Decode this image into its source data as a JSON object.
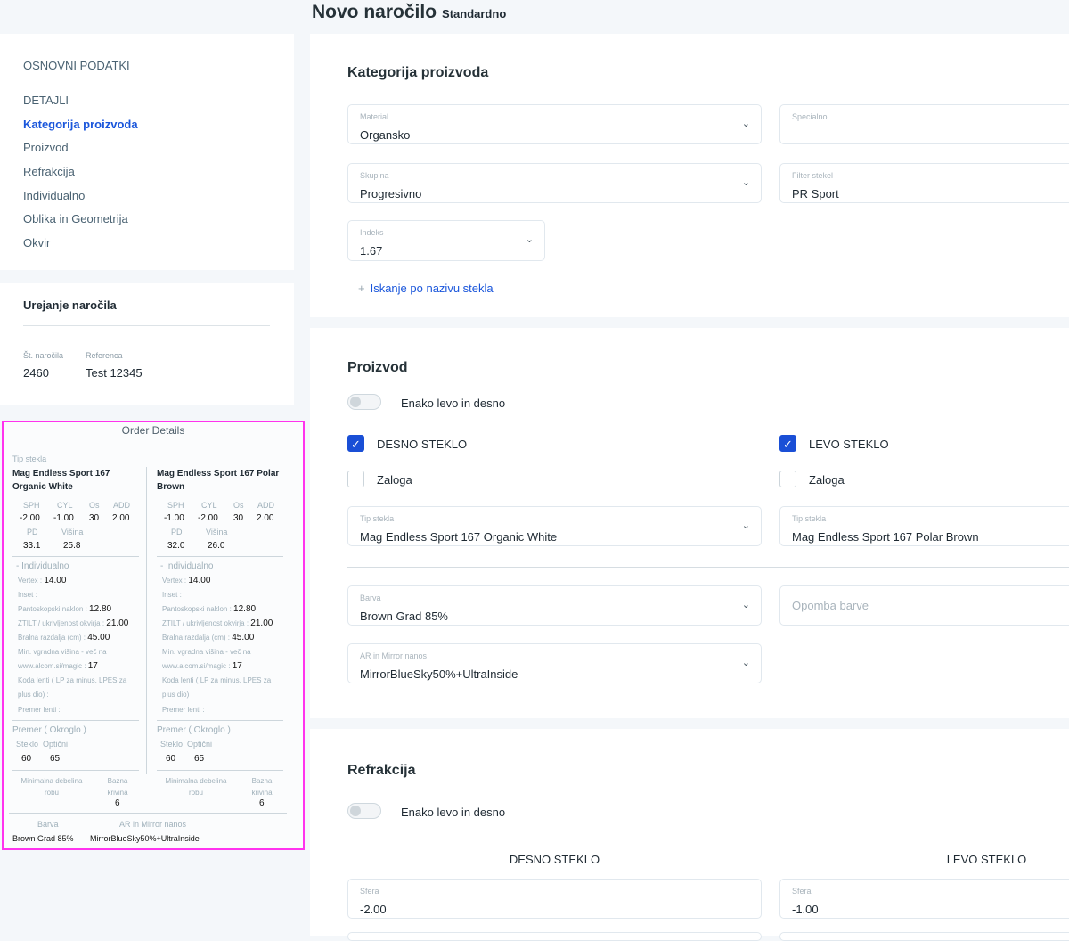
{
  "header": {
    "title": "Novo naročilo",
    "subtitle": "Standardno"
  },
  "sidebar": {
    "section": "OSNOVNI PODATKI",
    "items": [
      {
        "label": "DETAJLI"
      },
      {
        "label": "Kategorija proizvoda",
        "active": true
      },
      {
        "label": "Proizvod"
      },
      {
        "label": "Refrakcija"
      },
      {
        "label": "Individualno"
      },
      {
        "label": "Oblika in Geometrija"
      },
      {
        "label": "Okvir"
      }
    ]
  },
  "editing": {
    "title": "Urejanje naročila",
    "order_no_label": "Št. naročila",
    "order_no": "2460",
    "ref_label": "Referenca",
    "ref": "Test 12345"
  },
  "order_details": {
    "title": "Order Details",
    "tip_label": "Tip stekla",
    "sides": [
      {
        "name": "Mag Endless Sport 167 Organic White",
        "sph": "-2.00",
        "cyl": "-1.00",
        "os": "30",
        "add": "2.00",
        "pd": "33.1",
        "visina": "25.8",
        "vertex": "14.00",
        "panto": "12.80",
        "ztilt": "21.00",
        "bralna": "45.00",
        "min_vgr": "17",
        "steklo": "60",
        "opticni": "65",
        "bazna": "6"
      },
      {
        "name": "Mag Endless Sport 167 Polar Brown",
        "sph": "-1.00",
        "cyl": "-2.00",
        "os": "30",
        "add": "2.00",
        "pd": "32.0",
        "visina": "26.0",
        "vertex": "14.00",
        "panto": "12.80",
        "ztilt": "21.00",
        "bralna": "45.00",
        "min_vgr": "17",
        "steklo": "60",
        "opticni": "65",
        "bazna": "6"
      }
    ],
    "labels": {
      "sph": "SPH",
      "cyl": "CYL",
      "os": "Os",
      "add": "ADD",
      "pd": "PD",
      "visina": "Višina",
      "individualno": "- Individualno",
      "vertex": "Vertex : ",
      "inset": "Inset :",
      "panto": "Pantoskopski naklon : ",
      "ztilt": "ZTILT / ukrivljenost okvirja : ",
      "bralna": "Bralna razdalja (cm) : ",
      "min_vgr": "Min. vgradna višina - več na www.alcom.si/magic : ",
      "koda": "Koda lenti ( LP za minus,  LPES za plus dio) :",
      "premer_lenti": "Premer lenti :",
      "premer": "Premer ( Okroglo )",
      "steklo": "Steklo",
      "opticni": "Optični",
      "min_deb": "Minimalna debelina robu",
      "bazna": "Bazna krivina",
      "barva": "Barva",
      "ar": "AR in Mirror nanos"
    },
    "barva": "Brown Grad 85%",
    "ar": "MirrorBlueSky50%+UltraInside"
  },
  "kategorija": {
    "title": "Kategorija proizvoda",
    "material": {
      "label": "Material",
      "value": "Organsko"
    },
    "specialno": {
      "label": "Specialno",
      "value": ""
    },
    "skupina": {
      "label": "Skupina",
      "value": "Progresivno"
    },
    "filter": {
      "label": "Filter stekel",
      "value": "PR Sport"
    },
    "indeks": {
      "label": "Indeks",
      "value": "1.67"
    },
    "search_link": "Iskanje po nazivu stekla"
  },
  "proizvod": {
    "title": "Proizvod",
    "toggle_label": "Enako levo in desno",
    "right": "DESNO STEKLO",
    "left": "LEVO STEKLO",
    "zaloga": "Zaloga",
    "tip_label": "Tip stekla",
    "tip_right": "Mag Endless Sport 167 Organic White",
    "tip_left": "Mag Endless Sport 167 Polar Brown",
    "barva_label": "Barva",
    "barva": "Brown Grad 85%",
    "opomba_placeholder": "Opomba barve",
    "ar_label": "AR in Mirror nanos",
    "ar": "MirrorBlueSky50%+UltraInside"
  },
  "refrakcija": {
    "title": "Refrakcija",
    "toggle_label": "Enako levo in desno",
    "right": "DESNO STEKLO",
    "left": "LEVO STEKLO",
    "sfera_label": "Sfera",
    "sfera_right": "-2.00",
    "sfera_left": "-1.00"
  },
  "colors": {
    "accent": "#1a56db",
    "highlight_border": "#ff33ee"
  }
}
